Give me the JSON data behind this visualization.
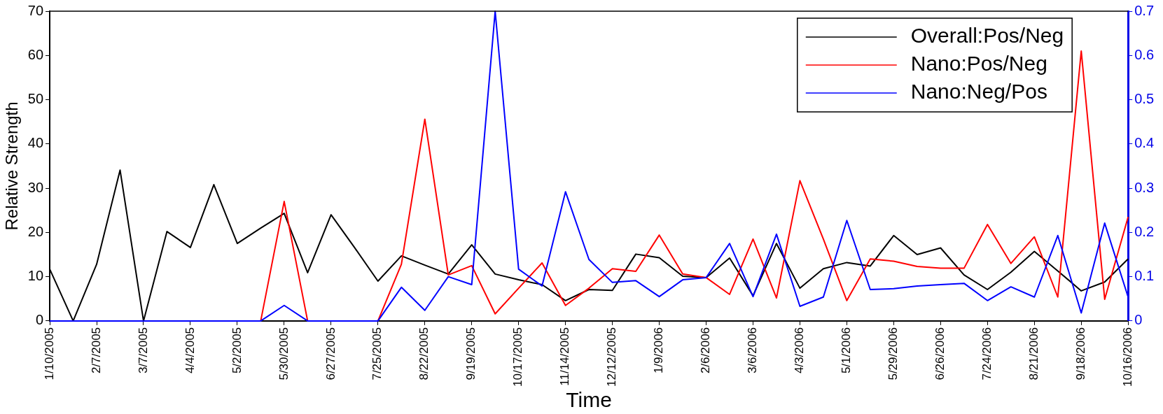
{
  "chart_data": {
    "type": "line",
    "xlabel": "Time",
    "ylabel": "Relative Strength",
    "categories": [
      "1/10/2005",
      null,
      "2/7/2005",
      null,
      "3/7/2005",
      null,
      "4/4/2005",
      null,
      "5/2/2005",
      null,
      "5/30/2005",
      null,
      "6/27/2005",
      null,
      "7/25/2005",
      null,
      "8/22/2005",
      null,
      "9/19/2005",
      null,
      "10/17/2005",
      null,
      "11/14/2005",
      null,
      "12/12/2005",
      null,
      "1/9/2006",
      null,
      "2/6/2006",
      null,
      "3/6/2006",
      null,
      "4/3/2006",
      null,
      "5/1/2006",
      null,
      "5/29/2006",
      null,
      "6/26/2006",
      null,
      "7/24/2006",
      null,
      "8/21/2006",
      null,
      "9/18/2006",
      null,
      "10/16/2006"
    ],
    "series": [
      {
        "name": "Overall:Pos/Neg",
        "color": "#000000",
        "values": [
          11.7,
          0,
          12.8,
          34.1,
          0,
          20.2,
          16.6,
          30.8,
          17.5,
          21,
          24.3,
          10.9,
          24,
          16.6,
          9,
          14.7,
          12.6,
          10.6,
          17.2,
          10.6,
          9.3,
          8.2,
          4.6,
          7.1,
          6.9,
          15.1,
          14.3,
          10.1,
          9.8,
          14.2,
          5.7,
          17.5,
          7.4,
          11.8,
          13.2,
          12.4,
          19.3,
          15,
          16.5,
          10.4,
          7.1,
          11,
          15.7,
          11.3,
          6.8,
          8.8,
          14
        ]
      },
      {
        "name": "Nano:Pos/Neg",
        "color": "#ff0000",
        "values": [
          null,
          null,
          null,
          null,
          null,
          null,
          null,
          null,
          null,
          0,
          27,
          0,
          null,
          null,
          0,
          12.8,
          45.6,
          10.4,
          12.5,
          1.6,
          7.4,
          13.1,
          3.5,
          7.4,
          11.8,
          11.2,
          19.4,
          10.6,
          9.8,
          6,
          18.5,
          5.2,
          31.7,
          18.5,
          4.6,
          14,
          13.5,
          12.3,
          11.9,
          11.9,
          21.8,
          13,
          19,
          5.4,
          61,
          4.9,
          23.5
        ]
      },
      {
        "name": "Nano:Neg/Pos",
        "color": "#0000ff",
        "axis": "y2",
        "values": [
          0,
          0,
          0,
          0,
          0,
          0,
          0,
          0,
          0,
          0,
          0.035,
          0,
          0,
          0,
          0,
          0.076,
          0.024,
          0.1,
          0.082,
          0.7,
          0.117,
          0.079,
          0.292,
          0.139,
          0.087,
          0.091,
          0.055,
          0.093,
          0.098,
          0.175,
          0.055,
          0.196,
          0.033,
          0.054,
          0.227,
          0.071,
          0.073,
          0.079,
          0.082,
          0.085,
          0.046,
          0.077,
          0.054,
          0.193,
          0.018,
          0.221,
          0.054
        ]
      }
    ],
    "ylim": [
      0,
      70
    ],
    "yticks": [
      0,
      10,
      20,
      30,
      40,
      50,
      60,
      70
    ],
    "y2lim": [
      0,
      0.7
    ],
    "y2ticks": [
      0,
      0.1,
      0.2,
      0.3,
      0.4,
      0.5,
      0.6,
      0.7
    ],
    "legend": "top right"
  }
}
